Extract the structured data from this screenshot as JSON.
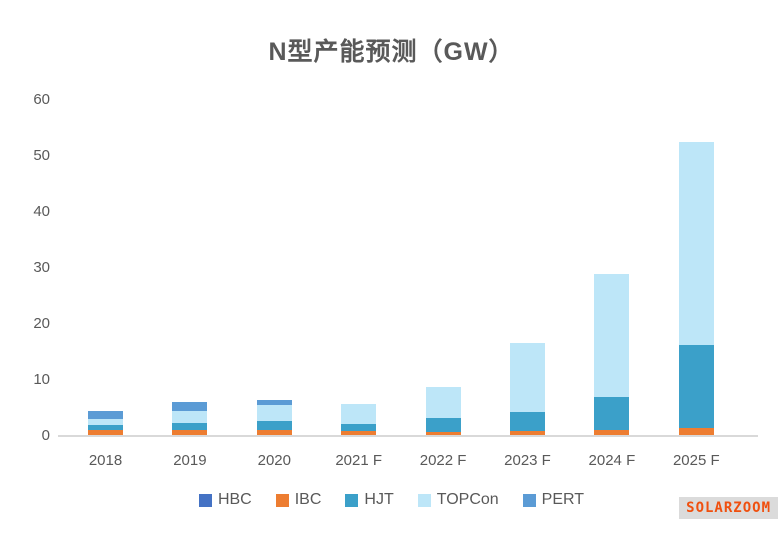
{
  "title": "N型产能预测（GW）",
  "watermark": "SOLARZOOM",
  "colors": {
    "title_text": "#595959",
    "tick_text": "#595959",
    "axis_line": "#D9D9D9",
    "watermark_text": "#F0500F",
    "watermark_bg": "#DBDBDB"
  },
  "chart_data": {
    "type": "bar",
    "stacked": true,
    "title": "N型产能预测（GW）",
    "xlabel": "",
    "ylabel": "",
    "ylim": [
      0,
      60
    ],
    "yticks": [
      0,
      10,
      20,
      30,
      40,
      50,
      60
    ],
    "grid": false,
    "legend_position": "bottom",
    "categories": [
      "2018",
      "2019",
      "2020",
      "2021 F",
      "2022 F",
      "2023 F",
      "2024 F",
      "2025 F"
    ],
    "series": [
      {
        "name": "HBC",
        "color": "#4472C4",
        "values": [
          0,
          0,
          0,
          0,
          0,
          0,
          0,
          0
        ]
      },
      {
        "name": "IBC",
        "color": "#ED7D31",
        "values": [
          1.0,
          1.0,
          1.1,
          0.9,
          0.7,
          0.9,
          1.1,
          1.5
        ]
      },
      {
        "name": "HJT",
        "color": "#3BA0C9",
        "values": [
          1.0,
          1.3,
          1.6,
          1.3,
          2.6,
          3.4,
          5.8,
          14.8
        ]
      },
      {
        "name": "TOPCon",
        "color": "#BDE6F8",
        "values": [
          1.0,
          2.2,
          2.8,
          3.6,
          5.5,
          12.3,
          22.1,
          36.2
        ]
      },
      {
        "name": "PERT",
        "color": "#5B9BD5",
        "values": [
          1.5,
          1.5,
          1.0,
          0,
          0,
          0,
          0,
          0
        ]
      }
    ],
    "totals": [
      4.5,
      6.0,
      6.5,
      5.8,
      8.8,
      16.5,
      29.0,
      52.5
    ]
  }
}
